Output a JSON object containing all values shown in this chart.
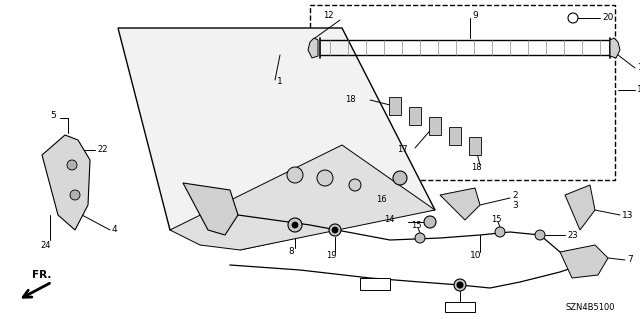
{
  "bg_color": "#ffffff",
  "fig_width": 6.4,
  "fig_height": 3.19,
  "diagram_code": "SZN4B5100"
}
